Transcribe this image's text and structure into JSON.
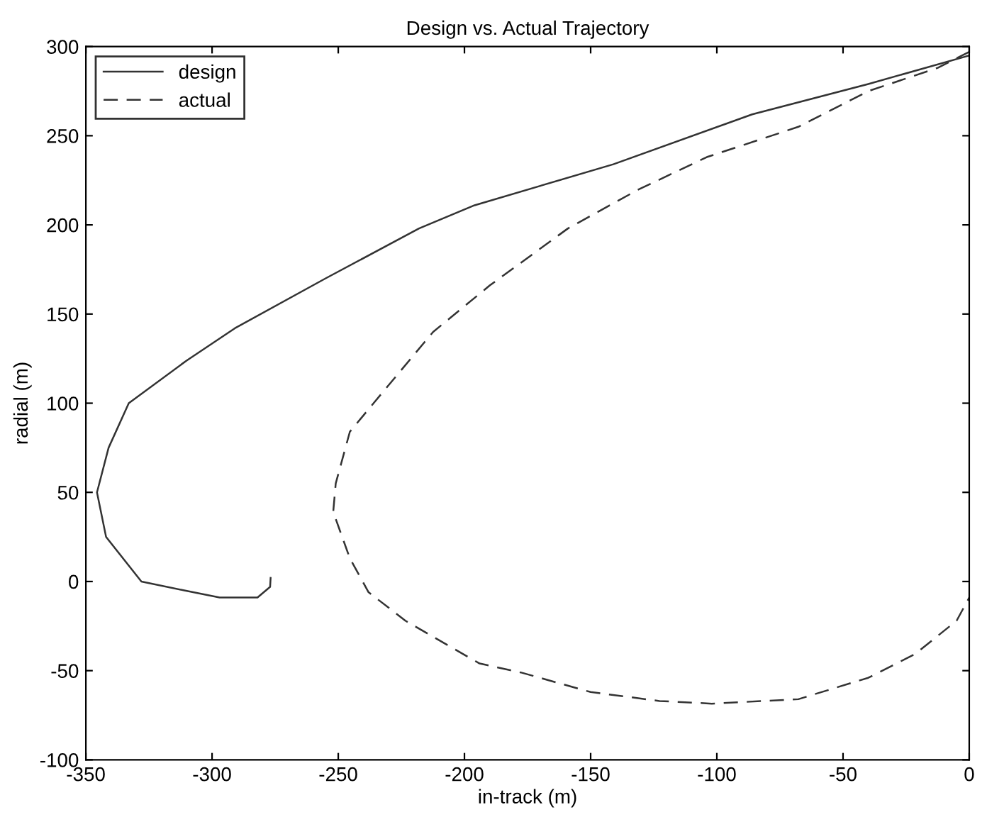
{
  "chart_data": {
    "type": "line",
    "title": "Design vs. Actual Trajectory",
    "xlabel": "in-track (m)",
    "ylabel": "radial (m)",
    "xlim": [
      -350,
      0
    ],
    "ylim": [
      -100,
      300
    ],
    "xticks": [
      -350,
      -300,
      -250,
      -200,
      -150,
      -100,
      -50,
      0
    ],
    "yticks": [
      -100,
      -50,
      0,
      50,
      100,
      150,
      200,
      250,
      300
    ],
    "grid": false,
    "legend": "top left",
    "marker": "none",
    "series": [
      {
        "name": "design",
        "color": "#333333",
        "line_style": "solid",
        "x": [
          0,
          -40,
          -86,
          -141,
          -196,
          -218,
          -255,
          -291,
          -310,
          -333,
          -341,
          -345.6,
          -342,
          -328,
          -311,
          -297,
          -282,
          -277,
          -276.8
        ],
        "values": [
          295,
          279,
          262,
          234,
          211,
          198,
          170,
          142,
          124,
          100,
          75,
          50,
          25,
          0,
          -5,
          -9,
          -9,
          -3,
          2
        ]
      },
      {
        "name": "actual",
        "color": "#333333",
        "line_style": "dashed",
        "x": [
          0,
          -12.6,
          -40,
          -67.7,
          -104,
          -131.5,
          -159,
          -190,
          -212.4,
          -236,
          -245.4,
          -251,
          -252,
          -245.4,
          -238,
          -223.4,
          -194,
          -177.7,
          -150,
          -122.7,
          -102,
          -67.7,
          -40,
          -21.4,
          -5,
          0
        ],
        "values": [
          297,
          288,
          275,
          255,
          238,
          219.5,
          198,
          166,
          140,
          100,
          84,
          55,
          39,
          13,
          -6,
          -22,
          -46,
          -51,
          -62,
          -67,
          -68.5,
          -66,
          -54,
          -40.6,
          -22,
          -9
        ]
      }
    ]
  }
}
